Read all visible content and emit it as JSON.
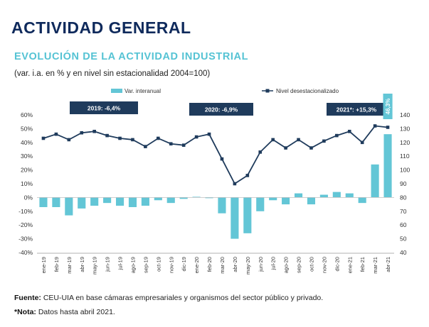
{
  "header": {
    "title": "ACTIVIDAD GENERAL",
    "subtitle": "EVOLUCIÓN DE LA ACTIVIDAD INDUSTRIAL",
    "description": "(var. i.a. en % y en nivel sin estacionalidad 2004=100)"
  },
  "footer": {
    "source_label": "Fuente:",
    "source_text": " CEU-UIA en base cámaras empresariales y organismos del sector público y privado.",
    "note_label": "*Nota:",
    "note_text": " Datos hasta abril 2021."
  },
  "colors": {
    "bar": "#63c6d6",
    "line": "#1f3b5c",
    "box": "#1f3b5c",
    "axis": "#333333",
    "grid": "#d9d9d9"
  },
  "chart_data": {
    "type": "bar+line",
    "categories": [
      "ene-19",
      "feb-19",
      "mar-19",
      "abr-19",
      "may-19",
      "jun-19",
      "jul-19",
      "ago-19",
      "sep-19",
      "oct-19",
      "nov-19",
      "dic-19",
      "ene-20",
      "feb-20",
      "mar-20",
      "abr-20",
      "may-20",
      "jun-20",
      "jul-20",
      "ago-20",
      "sep-20",
      "oct-20",
      "nov-20",
      "dic-20",
      "ene-21",
      "feb-21",
      "mar-21",
      "abr-21"
    ],
    "x_tick_labels": [
      "ene-19",
      "mar-19",
      "may-19",
      "jul-19",
      "sep-19",
      "nov-19",
      "ene-20",
      "mar-20",
      "may-20",
      "jul-20",
      "sep-20",
      "nov-20",
      "ene-21",
      "mar-21"
    ],
    "tick_labels_x": [
      "ene-19",
      "mar-19",
      "may-19",
      "jul-19",
      "sep-19",
      "nov-19",
      "ene-20",
      "mar-20",
      "may-20",
      "jul-20",
      "sep-20",
      "nov-20",
      "ene-21",
      "mar-21"
    ],
    "x_ticks_shown": [
      "ene-19",
      "feb-19",
      "mar-19",
      "abr-19",
      "may-19",
      "jun-19",
      "jul-19",
      "ago-19",
      "sep-19",
      "oct-19",
      "nov-19",
      "dic-19",
      "ene-20",
      "feb-20",
      "mar-20",
      "abr-20",
      "may-20",
      "jun-20",
      "jul-20",
      "ago-20",
      "sep-20",
      "oct-20",
      "nov-20",
      "dic-20",
      "ene-21",
      "feb-21",
      "mar-21",
      "abr-21"
    ],
    "series": [
      {
        "name": "Var. interanual",
        "type": "bar",
        "axis": "left",
        "values": [
          -7,
          -7,
          -13,
          -8,
          -6,
          -4,
          -6,
          -7,
          -6,
          -2,
          -4,
          -1,
          0.5,
          -0.5,
          -11.5,
          -30,
          -26,
          -10,
          -2,
          -5,
          3,
          -5,
          2,
          4,
          3,
          -4,
          24,
          46
        ]
      },
      {
        "name": "Nivel desestacionalizado",
        "type": "line",
        "axis": "right",
        "values": [
          123,
          126,
          122,
          127,
          128,
          125,
          123,
          122,
          117,
          123,
          119,
          118,
          124,
          126,
          108,
          90,
          96,
          113,
          122,
          116,
          122,
          116,
          121,
          125,
          128,
          120,
          132,
          131
        ]
      }
    ],
    "y_left": {
      "min": -40,
      "max": 60,
      "step": 10,
      "ticks": [
        "-40%",
        "-30%",
        "-20%",
        "-10%",
        "0%",
        "10%",
        "20%",
        "30%",
        "40%",
        "50%",
        "60%"
      ]
    },
    "y_right": {
      "min": 40,
      "max": 140,
      "step": 10,
      "ticks": [
        "40",
        "50",
        "60",
        "70",
        "80",
        "90",
        "100",
        "110",
        "120",
        "130",
        "140"
      ]
    },
    "annotations": [
      "2019: -6,4%",
      "2020: -6,9%",
      "2021*: +15,3%"
    ],
    "last_bar_label": "46,3%",
    "legend_position": "top",
    "grid": false
  }
}
